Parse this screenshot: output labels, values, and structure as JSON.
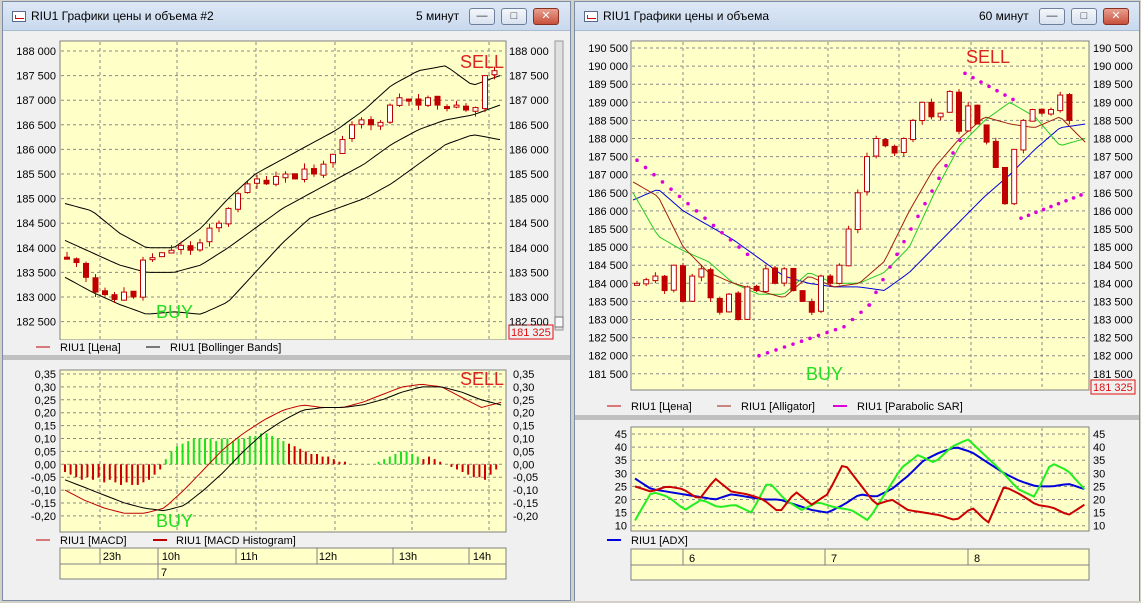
{
  "windows": [
    {
      "title": "RIU1 Графики цены и объема #2",
      "timeframe": "5 минут",
      "buttons": [
        "minimize",
        "maximize",
        "close"
      ],
      "price_panel": {
        "y_ticks": [
          "188 000",
          "187 500",
          "187 000",
          "186 500",
          "186 000",
          "185 500",
          "185 000",
          "184 500",
          "184 000",
          "183 500",
          "183 000",
          "182 500"
        ],
        "price_badge": "181 325",
        "signal_sell": "SELL",
        "signal_buy": "BUY",
        "legend": [
          {
            "swatch_color": "#c00000",
            "label": "RIU1 [Цена]"
          },
          {
            "swatch_color": "#000000",
            "label": "RIU1 [Bollinger Bands]"
          }
        ]
      },
      "macd_panel": {
        "y_ticks": [
          "0,35",
          "0,30",
          "0,25",
          "0,20",
          "0,15",
          "0,10",
          "0,05",
          "0,00",
          "-0,05",
          "-0,10",
          "-0,15",
          "-0,20"
        ],
        "signal_sell": "SELL",
        "signal_buy": "BUY",
        "legend": [
          {
            "swatch_color": "#c00000",
            "label": "RIU1 [MACD]"
          },
          {
            "swatch_color": "#c00000",
            "label": "RIU1 [MACD Histogram]"
          }
        ]
      },
      "time_axis": {
        "labels": [
          "23h",
          "10h",
          "11h",
          "12h",
          "13h",
          "14h"
        ],
        "dates": [
          {
            "label": "7"
          }
        ]
      }
    },
    {
      "title": "RIU1 Графики цены и объема",
      "timeframe": "60 минут",
      "buttons": [
        "minimize",
        "maximize",
        "close"
      ],
      "price_panel": {
        "y_ticks": [
          "190 500",
          "190 000",
          "189 500",
          "189 000",
          "188 500",
          "188 000",
          "187 500",
          "187 000",
          "186 500",
          "186 000",
          "185 500",
          "185 000",
          "184 500",
          "184 000",
          "183 500",
          "183 000",
          "182 500",
          "182 000",
          "181 500"
        ],
        "price_badge": "181 325",
        "signal_sell": "SELL",
        "signal_buy": "BUY",
        "legend": [
          {
            "swatch_color": "#c00000",
            "label": "RIU1 [Цена]"
          },
          {
            "swatch_color": "#a02010",
            "label": "RIU1 [Alligator]"
          },
          {
            "swatch_color": "#dd00dd",
            "label": "RIU1 [Parabolic SAR]"
          }
        ]
      },
      "adx_panel": {
        "y_ticks": [
          "45",
          "40",
          "35",
          "30",
          "25",
          "20",
          "15",
          "10"
        ],
        "legend": [
          {
            "swatch_color": "#0000dd",
            "label": "RIU1 [ADX]"
          }
        ]
      },
      "time_axis": {
        "dates": [
          {
            "label": "6"
          },
          {
            "label": "7"
          },
          {
            "label": "8"
          }
        ]
      }
    }
  ]
}
